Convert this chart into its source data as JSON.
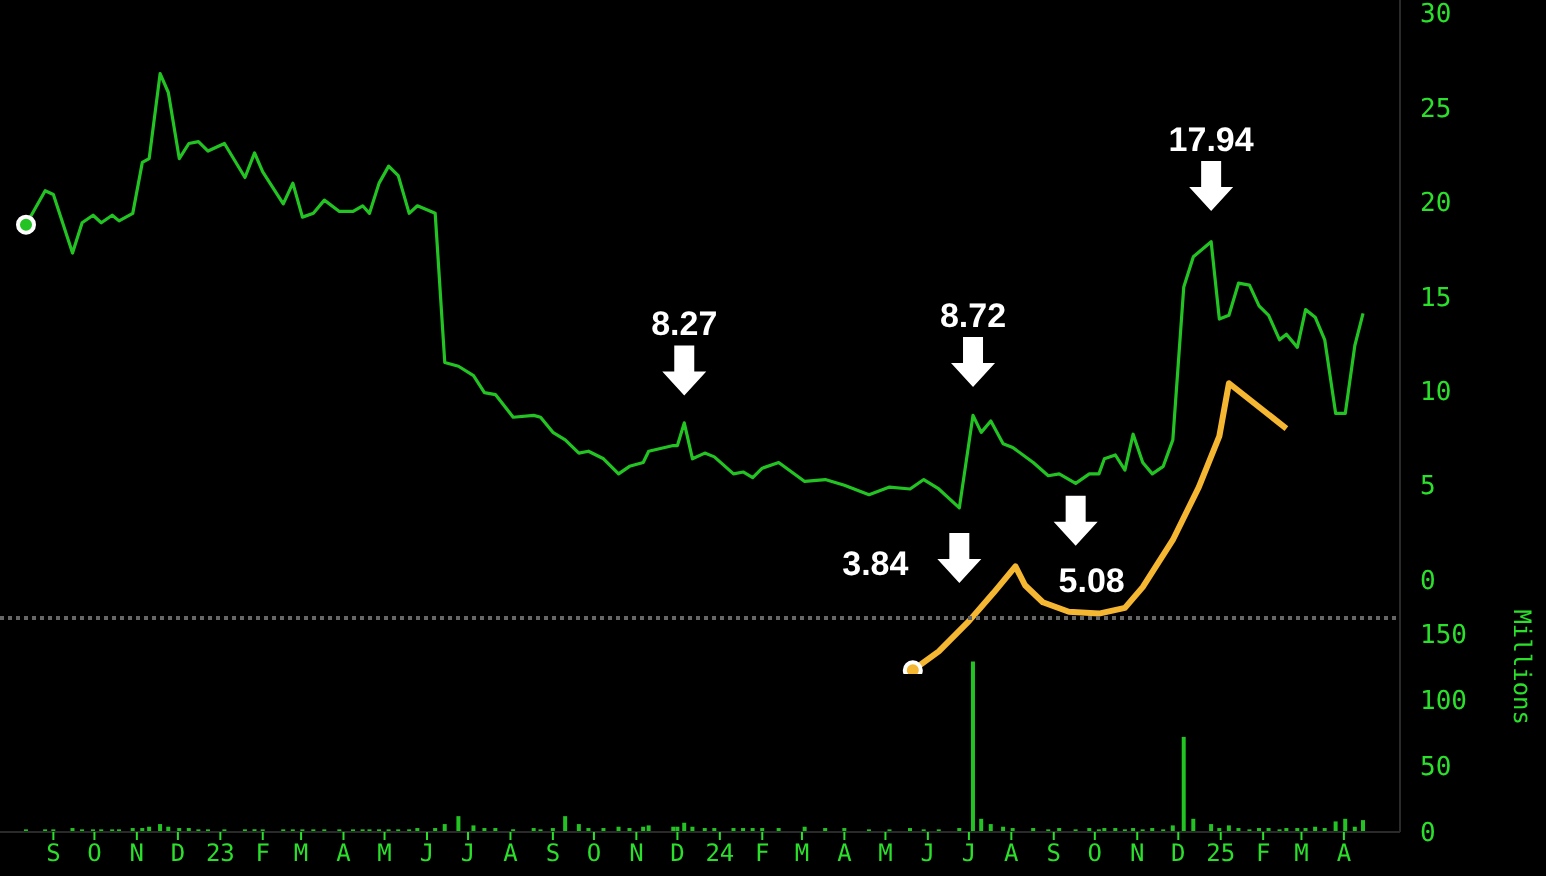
{
  "chart_data": [
    {
      "type": "line",
      "xlim": [
        "2022-07-24",
        "2025-05-12"
      ],
      "ylim": [
        -5,
        30.7
      ],
      "yticks": [
        0,
        5,
        10,
        15,
        20,
        25,
        30
      ],
      "tick_labels": "y",
      "marker": "none",
      "x": [
        "2022-08-12",
        "2022-08-26",
        "2022-09-01",
        "2022-09-15",
        "2022-09-22",
        "2022-09-30",
        "2022-10-06",
        "2022-10-14",
        "2022-10-19",
        "2022-10-29",
        "2022-11-05",
        "2022-11-10",
        "2022-11-18",
        "2022-11-24",
        "2022-12-02",
        "2022-12-09",
        "2022-12-16",
        "2022-12-23",
        "2023-01-04",
        "2023-01-19",
        "2023-01-26",
        "2023-02-01",
        "2023-02-16",
        "2023-02-23",
        "2023-03-02",
        "2023-03-10",
        "2023-03-18",
        "2023-03-29",
        "2023-04-08",
        "2023-04-15",
        "2023-04-20",
        "2023-04-27",
        "2023-05-04",
        "2023-05-11",
        "2023-05-19",
        "2023-05-25",
        "2023-06-07",
        "2023-06-14",
        "2023-06-24",
        "2023-07-05",
        "2023-07-13",
        "2023-07-21",
        "2023-08-03",
        "2023-08-18",
        "2023-08-23",
        "2023-09-01",
        "2023-09-10",
        "2023-09-20",
        "2023-09-27",
        "2023-10-08",
        "2023-10-19",
        "2023-10-27",
        "2023-11-06",
        "2023-11-10",
        "2023-11-28",
        "2023-12-01",
        "2023-12-06",
        "2023-12-12",
        "2023-12-21",
        "2023-12-28",
        "2024-01-11",
        "2024-01-18",
        "2024-01-25",
        "2024-02-01",
        "2024-02-13",
        "2024-03-03",
        "2024-03-18",
        "2024-04-01",
        "2024-04-19",
        "2024-05-04",
        "2024-05-19",
        "2024-05-29",
        "2024-06-09",
        "2024-06-24",
        "2024-07-04",
        "2024-07-10",
        "2024-07-17",
        "2024-07-26",
        "2024-08-02",
        "2024-08-17",
        "2024-08-28",
        "2024-09-05",
        "2024-09-17",
        "2024-09-27",
        "2024-10-04",
        "2024-10-08",
        "2024-10-16",
        "2024-10-23",
        "2024-10-29",
        "2024-11-05",
        "2024-11-12",
        "2024-11-20",
        "2024-11-27",
        "2024-12-05",
        "2024-12-12",
        "2024-12-25",
        "2024-12-31",
        "2025-01-07",
        "2025-01-14",
        "2025-01-22",
        "2025-01-29",
        "2025-02-05",
        "2025-02-13",
        "2025-02-18",
        "2025-02-26",
        "2025-03-04",
        "2025-03-11",
        "2025-03-18",
        "2025-03-26",
        "2025-04-02",
        "2025-04-09",
        "2025-04-15"
      ],
      "series": [
        {
          "color": "#22c322",
          "values": [
            18.8,
            20.6,
            20.4,
            17.3,
            18.9,
            19.3,
            18.9,
            19.3,
            19.0,
            19.4,
            22.1,
            22.3,
            26.8,
            25.8,
            22.3,
            23.1,
            23.2,
            22.7,
            23.1,
            21.3,
            22.6,
            21.6,
            19.9,
            21.0,
            19.2,
            19.4,
            20.1,
            19.5,
            19.5,
            19.8,
            19.4,
            21.0,
            21.9,
            21.4,
            19.4,
            19.8,
            19.4,
            11.5,
            11.3,
            10.8,
            9.9,
            9.8,
            8.6,
            8.7,
            8.6,
            7.8,
            7.4,
            6.7,
            6.8,
            6.4,
            5.6,
            6.0,
            6.2,
            6.8,
            7.1,
            7.1,
            8.3,
            6.4,
            6.7,
            6.5,
            5.6,
            5.7,
            5.4,
            5.9,
            6.2,
            5.2,
            5.3,
            5.0,
            4.5,
            4.9,
            4.8,
            5.3,
            4.8,
            3.8,
            8.7,
            7.8,
            8.4,
            7.2,
            7.0,
            6.2,
            5.5,
            5.6,
            5.1,
            5.6,
            5.6,
            6.4,
            6.6,
            5.8,
            7.7,
            6.2,
            5.6,
            6.0,
            7.4,
            15.5,
            17.1,
            17.9,
            13.8,
            14.0,
            15.7,
            15.6,
            14.5,
            14.0,
            12.7,
            13.0,
            12.3,
            14.3,
            13.9,
            12.7,
            8.8,
            8.8,
            12.4,
            14.1
          ]
        },
        {
          "color": "#f5b731",
          "x": [
            "2024-05-21",
            "2024-06-09",
            "2024-07-01",
            "2024-07-19",
            "2024-08-04",
            "2024-08-11",
            "2024-08-24",
            "2024-09-12",
            "2024-10-04",
            "2024-10-23",
            "2024-11-05",
            "2024-11-27",
            "2024-12-16",
            "2024-12-31",
            "2025-01-07",
            "2025-02-18"
          ],
          "values": [
            -4.8,
            -3.8,
            -2.2,
            -0.7,
            0.7,
            -0.3,
            -1.2,
            -1.7,
            -1.8,
            -1.5,
            -0.4,
            2.1,
            4.9,
            7.6,
            10.4,
            8.0
          ]
        }
      ],
      "annotations": [
        {
          "text": "8.27",
          "x": "2023-12-06",
          "y": 8.27
        },
        {
          "text": "3.84",
          "x": "2024-06-24",
          "y": 3.84
        },
        {
          "text": "8.72",
          "x": "2024-07-04",
          "y": 8.72
        },
        {
          "text": "5.08",
          "x": "2024-09-17",
          "y": 5.08
        },
        {
          "text": "17.94",
          "x": "2024-12-25",
          "y": 17.94
        }
      ]
    },
    {
      "type": "bar",
      "xlim": [
        "2022-07-24",
        "2025-05-12"
      ],
      "ylim": [
        0,
        162
      ],
      "yticks": [
        0,
        50,
        100,
        150
      ],
      "ylabel": "Millions",
      "xticks": [
        {
          "value": "2022-09-01",
          "label": "S"
        },
        {
          "value": "2022-10-01",
          "label": "O"
        },
        {
          "value": "2022-11-01",
          "label": "N"
        },
        {
          "value": "2022-12-01",
          "label": "D"
        },
        {
          "value": "2023-01-01",
          "label": "23"
        },
        {
          "value": "2023-02-01",
          "label": "F"
        },
        {
          "value": "2023-03-01",
          "label": "M"
        },
        {
          "value": "2023-04-01",
          "label": "A"
        },
        {
          "value": "2023-05-01",
          "label": "M"
        },
        {
          "value": "2023-06-01",
          "label": "J"
        },
        {
          "value": "2023-07-01",
          "label": "J"
        },
        {
          "value": "2023-08-01",
          "label": "A"
        },
        {
          "value": "2023-09-01",
          "label": "S"
        },
        {
          "value": "2023-10-01",
          "label": "O"
        },
        {
          "value": "2023-11-01",
          "label": "N"
        },
        {
          "value": "2023-12-01",
          "label": "D"
        },
        {
          "value": "2024-01-01",
          "label": "24"
        },
        {
          "value": "2024-02-01",
          "label": "F"
        },
        {
          "value": "2024-03-01",
          "label": "M"
        },
        {
          "value": "2024-04-01",
          "label": "A"
        },
        {
          "value": "2024-05-01",
          "label": "M"
        },
        {
          "value": "2024-06-01",
          "label": "J"
        },
        {
          "value": "2024-07-01",
          "label": "J"
        },
        {
          "value": "2024-08-01",
          "label": "A"
        },
        {
          "value": "2024-09-01",
          "label": "S"
        },
        {
          "value": "2024-10-01",
          "label": "O"
        },
        {
          "value": "2024-11-01",
          "label": "N"
        },
        {
          "value": "2024-12-01",
          "label": "D"
        },
        {
          "value": "2025-01-01",
          "label": "25"
        },
        {
          "value": "2025-02-01",
          "label": "F"
        },
        {
          "value": "2025-03-01",
          "label": "M"
        },
        {
          "value": "2025-04-01",
          "label": "A"
        }
      ],
      "x": [
        "2022-08-12",
        "2022-08-26",
        "2022-09-01",
        "2022-09-15",
        "2022-09-22",
        "2022-09-30",
        "2022-10-06",
        "2022-10-14",
        "2022-10-19",
        "2022-10-29",
        "2022-11-05",
        "2022-11-10",
        "2022-11-18",
        "2022-11-24",
        "2022-12-02",
        "2022-12-09",
        "2022-12-16",
        "2022-12-23",
        "2023-01-04",
        "2023-01-19",
        "2023-01-26",
        "2023-02-01",
        "2023-02-16",
        "2023-02-23",
        "2023-03-02",
        "2023-03-10",
        "2023-03-18",
        "2023-03-29",
        "2023-04-08",
        "2023-04-15",
        "2023-04-20",
        "2023-04-27",
        "2023-05-04",
        "2023-05-11",
        "2023-05-19",
        "2023-05-25",
        "2023-06-07",
        "2023-06-14",
        "2023-06-24",
        "2023-07-05",
        "2023-07-13",
        "2023-07-21",
        "2023-08-03",
        "2023-08-18",
        "2023-08-23",
        "2023-09-01",
        "2023-09-10",
        "2023-09-20",
        "2023-09-27",
        "2023-10-08",
        "2023-10-19",
        "2023-10-27",
        "2023-11-06",
        "2023-11-10",
        "2023-11-28",
        "2023-12-01",
        "2023-12-06",
        "2023-12-12",
        "2023-12-21",
        "2023-12-28",
        "2024-01-11",
        "2024-01-18",
        "2024-01-25",
        "2024-02-01",
        "2024-02-13",
        "2024-03-03",
        "2024-03-18",
        "2024-04-01",
        "2024-04-19",
        "2024-05-04",
        "2024-05-19",
        "2024-05-29",
        "2024-06-09",
        "2024-06-24",
        "2024-07-04",
        "2024-07-10",
        "2024-07-17",
        "2024-07-26",
        "2024-08-02",
        "2024-08-17",
        "2024-08-28",
        "2024-09-05",
        "2024-09-17",
        "2024-09-27",
        "2024-10-04",
        "2024-10-08",
        "2024-10-16",
        "2024-10-23",
        "2024-10-29",
        "2024-11-05",
        "2024-11-12",
        "2024-11-20",
        "2024-11-27",
        "2024-12-05",
        "2024-12-12",
        "2024-12-25",
        "2024-12-31",
        "2025-01-07",
        "2025-01-14",
        "2025-01-22",
        "2025-01-29",
        "2025-02-05",
        "2025-02-13",
        "2025-02-18",
        "2025-02-26",
        "2025-03-04",
        "2025-03-11",
        "2025-03-18",
        "2025-03-26",
        "2025-04-02",
        "2025-04-09",
        "2025-04-15"
      ],
      "series": [
        {
          "color": "#22c322",
          "values": [
            2,
            2,
            2,
            3,
            2,
            2,
            2,
            2,
            2,
            3,
            3,
            4,
            6,
            4,
            3,
            3,
            2,
            2,
            2,
            2,
            2,
            2,
            2,
            2,
            2,
            2,
            2,
            2,
            2,
            2,
            2,
            2,
            2,
            2,
            2,
            3,
            3,
            6,
            12,
            5,
            3,
            3,
            2,
            3,
            2,
            3,
            12,
            6,
            3,
            3,
            4,
            3,
            4,
            5,
            4,
            4,
            7,
            4,
            3,
            3,
            3,
            3,
            3,
            3,
            3,
            4,
            3,
            3,
            2,
            2,
            3,
            2,
            2,
            3,
            129,
            10,
            6,
            4,
            3,
            3,
            2,
            3,
            2,
            3,
            2,
            3,
            3,
            2,
            3,
            2,
            3,
            2,
            5,
            72,
            10,
            6,
            3,
            5,
            3,
            2,
            3,
            3,
            2,
            3,
            3,
            3,
            4,
            3,
            8,
            10,
            4,
            9
          ]
        }
      ]
    }
  ]
}
